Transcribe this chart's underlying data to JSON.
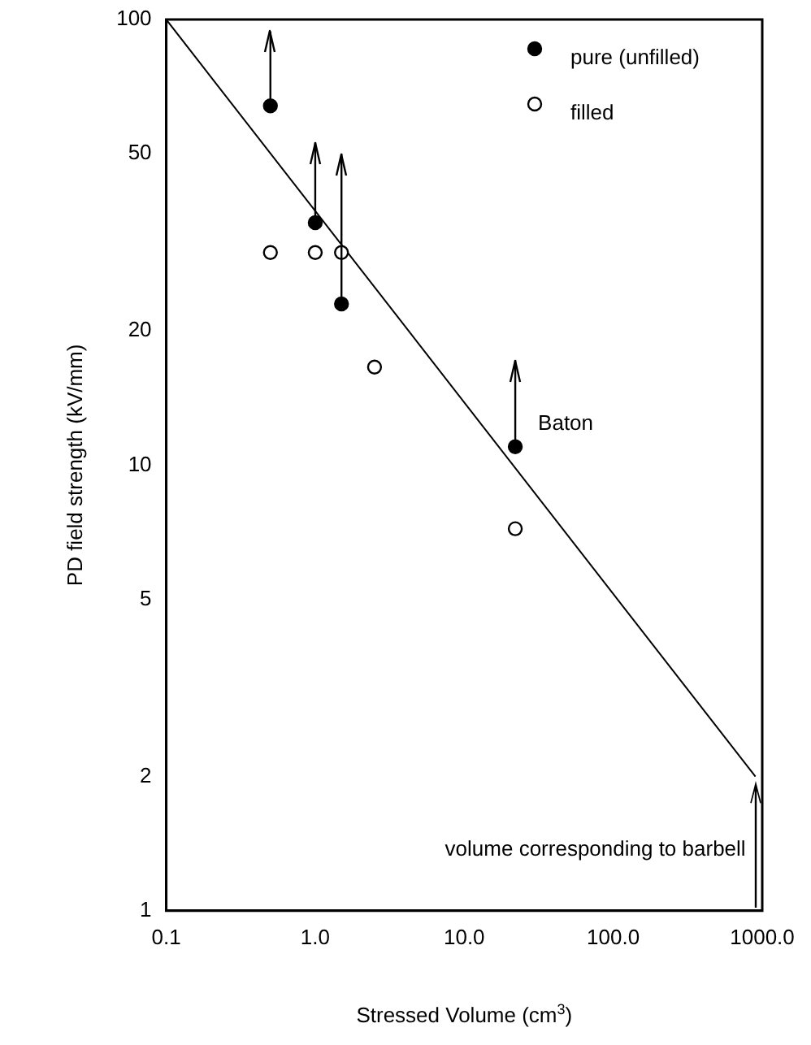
{
  "chart_data": {
    "type": "scatter",
    "xlabel": "Stressed Volume (cm$^{3}$)",
    "ylabel": "PD field strength (kV/mm)",
    "log": "xy",
    "xlim": [
      0.1,
      1000
    ],
    "ylim": [
      1,
      100
    ],
    "xticks": [
      {
        "value": 0.1,
        "label": "0.1"
      },
      {
        "value": 1,
        "label": "1.0"
      },
      {
        "value": 10,
        "label": "10.0"
      },
      {
        "value": 100,
        "label": "100.0"
      },
      {
        "value": 1000,
        "label": "1000.0"
      }
    ],
    "yticks": [
      1,
      2,
      5,
      10,
      20,
      50,
      100
    ],
    "grid": false,
    "legend": "top right",
    "series": [
      {
        "name": "pure (unfilled)",
        "color": "#000000",
        "x": [
          0.5,
          1.0,
          1.5,
          22
        ],
        "values": [
          64,
          35,
          23,
          11
        ],
        "errors": [
          [
            64,
            94
          ],
          [
            35,
            53
          ],
          [
            23,
            50
          ],
          [
            11,
            17.2
          ]
        ]
      },
      {
        "name": "filled",
        "color": "#000000",
        "x": [
          0.5,
          1.0,
          1.5,
          2.5,
          22
        ],
        "values": [
          30,
          30,
          30,
          16.6,
          7.2
        ]
      },
      {
        "type": "line",
        "color": "#000000",
        "x": [
          0.1,
          900
        ],
        "values": [
          100,
          2
        ]
      }
    ],
    "annotations": [
      {
        "text": "Baton",
        "x": 22,
        "y": 11
      },
      {
        "text": "volume corresponding to barbell",
        "x": 900,
        "y": 2
      }
    ]
  }
}
